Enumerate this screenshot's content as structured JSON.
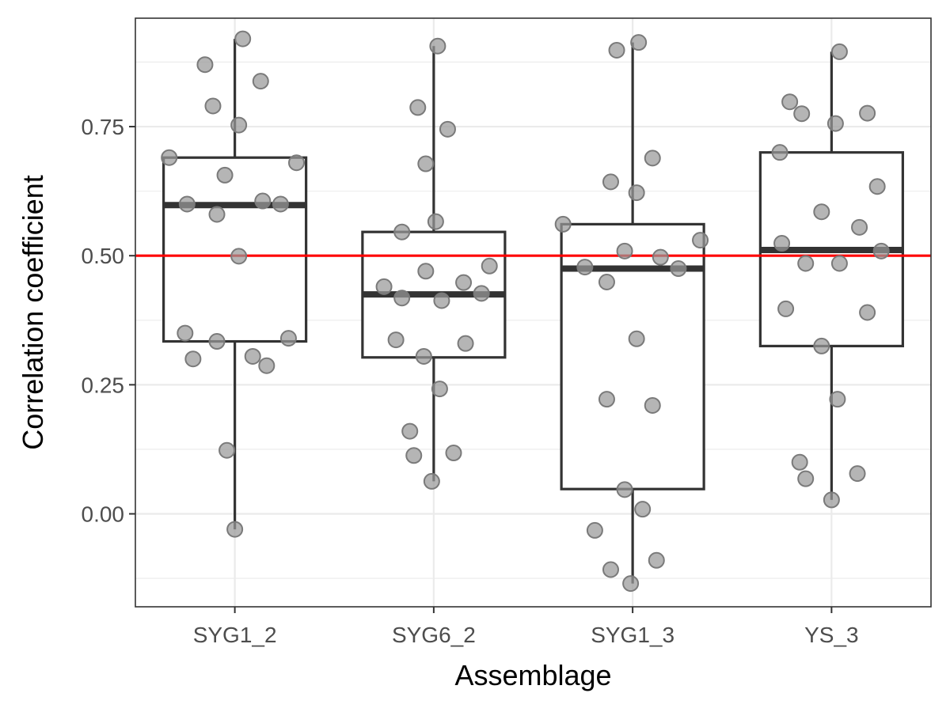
{
  "chart_data": {
    "type": "boxplot",
    "xlabel": "Assemblage",
    "ylabel": "Correlation coefficient",
    "categories": [
      "SYG1_2",
      "SYG6_2",
      "SYG1_3",
      "YS_3"
    ],
    "ylim": [
      -0.18,
      0.96
    ],
    "y_ticks": [
      0.0,
      0.25,
      0.5,
      0.75
    ],
    "y_tick_labels": [
      "0.00",
      "0.25",
      "0.50",
      "0.75"
    ],
    "y_minor_ticks": [
      -0.125,
      0.125,
      0.375,
      0.625,
      0.875
    ],
    "grid": true,
    "legend": "none",
    "reference_line": {
      "y": 0.5,
      "color": "#ff0000"
    },
    "point_color": "#999999",
    "groups": [
      {
        "name": "SYG1_2",
        "box": {
          "lower_whisker": -0.03,
          "q1": 0.334,
          "median": 0.598,
          "q3": 0.69,
          "upper_whisker": 0.92
        },
        "points": [
          [
            -0.33,
            0.69
          ],
          [
            -0.25,
            0.35
          ],
          [
            -0.21,
            0.3
          ],
          [
            -0.24,
            0.6
          ],
          [
            -0.15,
            0.87
          ],
          [
            -0.11,
            0.79
          ],
          [
            -0.09,
            0.58
          ],
          [
            -0.09,
            0.334
          ],
          [
            -0.05,
            0.656
          ],
          [
            -0.04,
            0.123
          ],
          [
            0.0,
            -0.03
          ],
          [
            0.02,
            0.753
          ],
          [
            0.02,
            0.499
          ],
          [
            0.04,
            0.92
          ],
          [
            0.09,
            0.305
          ],
          [
            0.13,
            0.838
          ],
          [
            0.14,
            0.606
          ],
          [
            0.16,
            0.287
          ],
          [
            0.23,
            0.6
          ],
          [
            0.27,
            0.34
          ],
          [
            0.31,
            0.68
          ]
        ]
      },
      {
        "name": "SYG6_2",
        "box": {
          "lower_whisker": 0.063,
          "q1": 0.303,
          "median": 0.425,
          "q3": 0.546,
          "upper_whisker": 0.906
        },
        "points": [
          [
            -0.25,
            0.44
          ],
          [
            -0.19,
            0.337
          ],
          [
            -0.16,
            0.418
          ],
          [
            -0.16,
            0.546
          ],
          [
            -0.12,
            0.16
          ],
          [
            -0.1,
            0.113
          ],
          [
            -0.08,
            0.787
          ],
          [
            -0.05,
            0.305
          ],
          [
            -0.04,
            0.47
          ],
          [
            -0.04,
            0.678
          ],
          [
            -0.01,
            0.063
          ],
          [
            0.01,
            0.566
          ],
          [
            0.02,
            0.906
          ],
          [
            0.03,
            0.242
          ],
          [
            0.04,
            0.413
          ],
          [
            0.07,
            0.745
          ],
          [
            0.1,
            0.118
          ],
          [
            0.16,
            0.33
          ],
          [
            0.15,
            0.448
          ],
          [
            0.24,
            0.427
          ],
          [
            0.28,
            0.48
          ]
        ]
      },
      {
        "name": "SYG1_3",
        "box": {
          "lower_whisker": -0.135,
          "q1": 0.048,
          "median": 0.475,
          "q3": 0.561,
          "upper_whisker": 0.913
        },
        "points": [
          [
            -0.35,
            0.561
          ],
          [
            -0.24,
            0.478
          ],
          [
            -0.19,
            -0.032
          ],
          [
            -0.13,
            0.222
          ],
          [
            -0.13,
            0.449
          ],
          [
            -0.11,
            -0.108
          ],
          [
            -0.11,
            0.643
          ],
          [
            -0.08,
            0.898
          ],
          [
            -0.04,
            0.509
          ],
          [
            -0.04,
            0.047
          ],
          [
            -0.01,
            -0.135
          ],
          [
            0.02,
            0.622
          ],
          [
            0.02,
            0.339
          ],
          [
            0.03,
            0.913
          ],
          [
            0.05,
            0.009
          ],
          [
            0.1,
            0.21
          ],
          [
            0.1,
            0.689
          ],
          [
            0.12,
            -0.09
          ],
          [
            0.14,
            0.497
          ],
          [
            0.23,
            0.475
          ],
          [
            0.34,
            0.53
          ]
        ]
      },
      {
        "name": "YS_3",
        "box": {
          "lower_whisker": 0.027,
          "q1": 0.325,
          "median": 0.511,
          "q3": 0.7,
          "upper_whisker": 0.895
        },
        "points": [
          [
            -0.26,
            0.7
          ],
          [
            -0.25,
            0.524
          ],
          [
            -0.23,
            0.397
          ],
          [
            -0.21,
            0.798
          ],
          [
            -0.16,
            0.1
          ],
          [
            -0.15,
            0.775
          ],
          [
            -0.13,
            0.485
          ],
          [
            -0.13,
            0.068
          ],
          [
            -0.05,
            0.585
          ],
          [
            -0.05,
            0.325
          ],
          [
            0.0,
            0.027
          ],
          [
            0.02,
            0.756
          ],
          [
            0.03,
            0.222
          ],
          [
            0.04,
            0.485
          ],
          [
            0.04,
            0.895
          ],
          [
            0.13,
            0.078
          ],
          [
            0.14,
            0.555
          ],
          [
            0.18,
            0.39
          ],
          [
            0.18,
            0.776
          ],
          [
            0.23,
            0.634
          ],
          [
            0.25,
            0.509
          ]
        ]
      }
    ]
  }
}
